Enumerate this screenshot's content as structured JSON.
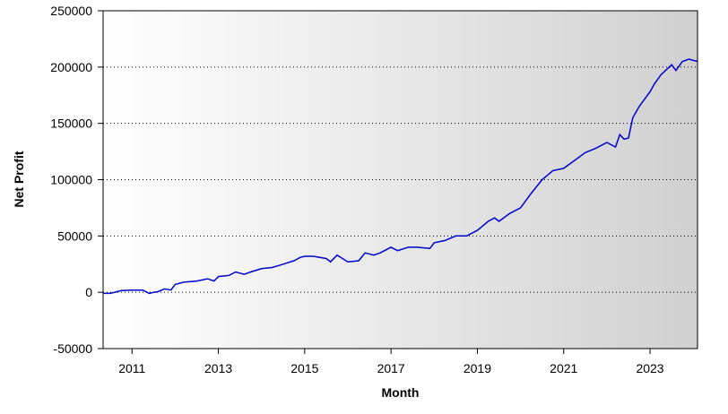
{
  "chart_data": {
    "type": "line",
    "title": "",
    "xlabel": "Month",
    "ylabel": "Net Profit",
    "xlim": [
      2010.33,
      2024.1
    ],
    "ylim": [
      -50000,
      250000
    ],
    "y_ticks": [
      -50000,
      0,
      50000,
      100000,
      150000,
      200000,
      250000
    ],
    "y_tick_labels": [
      "-50000",
      "0",
      "50000",
      "100000",
      "150000",
      "200000",
      "250000"
    ],
    "x_ticks": [
      2011,
      2013,
      2015,
      2017,
      2019,
      2021,
      2023
    ],
    "x_tick_labels": [
      "2011",
      "2013",
      "2015",
      "2017",
      "2019",
      "2021",
      "2023"
    ],
    "grid": "horizontal dotted",
    "background": "horizontal gradient white to light gray",
    "line_color": "#0000cc",
    "series": [
      {
        "x": [
          2010.33,
          2010.5,
          2010.75,
          2011.0,
          2011.25,
          2011.4,
          2011.5,
          2011.6,
          2011.75,
          2011.9,
          2012.0,
          2012.2,
          2012.5,
          2012.75,
          2012.9,
          2013.0,
          2013.25,
          2013.4,
          2013.6,
          2013.75,
          2014.0,
          2014.25,
          2014.5,
          2014.75,
          2014.9,
          2015.0,
          2015.2,
          2015.5,
          2015.6,
          2015.75,
          2016.0,
          2016.25,
          2016.4,
          2016.6,
          2016.75,
          2017.0,
          2017.15,
          2017.4,
          2017.6,
          2017.9,
          2018.0,
          2018.25,
          2018.5,
          2018.75,
          2019.0,
          2019.25,
          2019.4,
          2019.5,
          2019.75,
          2020.0,
          2020.25,
          2020.5,
          2020.75,
          2021.0,
          2021.25,
          2021.5,
          2021.75,
          2022.0,
          2022.2,
          2022.3,
          2022.4,
          2022.5,
          2022.6,
          2022.75,
          2023.0,
          2023.1,
          2023.25,
          2023.5,
          2023.6,
          2023.75,
          2023.9,
          2024.1
        ],
        "values": [
          -1000,
          -1000,
          1500,
          2000,
          2000,
          -1000,
          0,
          500,
          3000,
          2000,
          7000,
          9000,
          10000,
          12000,
          10000,
          14000,
          15000,
          18000,
          16000,
          18000,
          21000,
          22000,
          25000,
          28000,
          31000,
          32000,
          32000,
          30000,
          27000,
          33000,
          27000,
          28000,
          35000,
          33000,
          35000,
          40000,
          37000,
          40000,
          40000,
          39000,
          44000,
          46000,
          50000,
          50000,
          55000,
          63000,
          66000,
          63000,
          70000,
          75000,
          88000,
          100000,
          108000,
          110000,
          117000,
          124000,
          128000,
          133000,
          129000,
          140000,
          136000,
          137000,
          155000,
          165000,
          178000,
          185000,
          193000,
          202000,
          197000,
          205000,
          207000,
          205000
        ]
      }
    ]
  }
}
